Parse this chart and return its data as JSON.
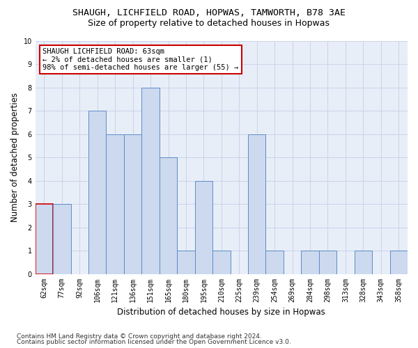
{
  "title1": "SHAUGH, LICHFIELD ROAD, HOPWAS, TAMWORTH, B78 3AE",
  "title2": "Size of property relative to detached houses in Hopwas",
  "xlabel": "Distribution of detached houses by size in Hopwas",
  "ylabel": "Number of detached properties",
  "categories": [
    "62sqm",
    "77sqm",
    "92sqm",
    "106sqm",
    "121sqm",
    "136sqm",
    "151sqm",
    "165sqm",
    "180sqm",
    "195sqm",
    "210sqm",
    "225sqm",
    "239sqm",
    "254sqm",
    "269sqm",
    "284sqm",
    "298sqm",
    "313sqm",
    "328sqm",
    "343sqm",
    "358sqm"
  ],
  "values": [
    3,
    3,
    0,
    7,
    6,
    6,
    8,
    5,
    1,
    4,
    1,
    0,
    6,
    1,
    0,
    1,
    1,
    0,
    1,
    0,
    1
  ],
  "bar_color": "#cdd9ee",
  "bar_edge_color": "#5b8cc8",
  "annotation_text": "SHAUGH LICHFIELD ROAD: 63sqm\n← 2% of detached houses are smaller (1)\n98% of semi-detached houses are larger (55) →",
  "annotation_box_color": "#ffffff",
  "annotation_box_edge_color": "#cc0000",
  "highlight_bar_index": 0,
  "highlight_bar_edge_color": "#cc0000",
  "ylim": [
    0,
    10
  ],
  "yticks": [
    0,
    1,
    2,
    3,
    4,
    5,
    6,
    7,
    8,
    9,
    10
  ],
  "grid_color": "#c8d4e8",
  "bg_color": "#e8eef8",
  "footnote1": "Contains HM Land Registry data © Crown copyright and database right 2024.",
  "footnote2": "Contains public sector information licensed under the Open Government Licence v3.0.",
  "title1_fontsize": 9.5,
  "title2_fontsize": 9,
  "xlabel_fontsize": 8.5,
  "ylabel_fontsize": 8.5,
  "tick_fontsize": 7,
  "annotation_fontsize": 7.5,
  "footnote_fontsize": 6.5
}
